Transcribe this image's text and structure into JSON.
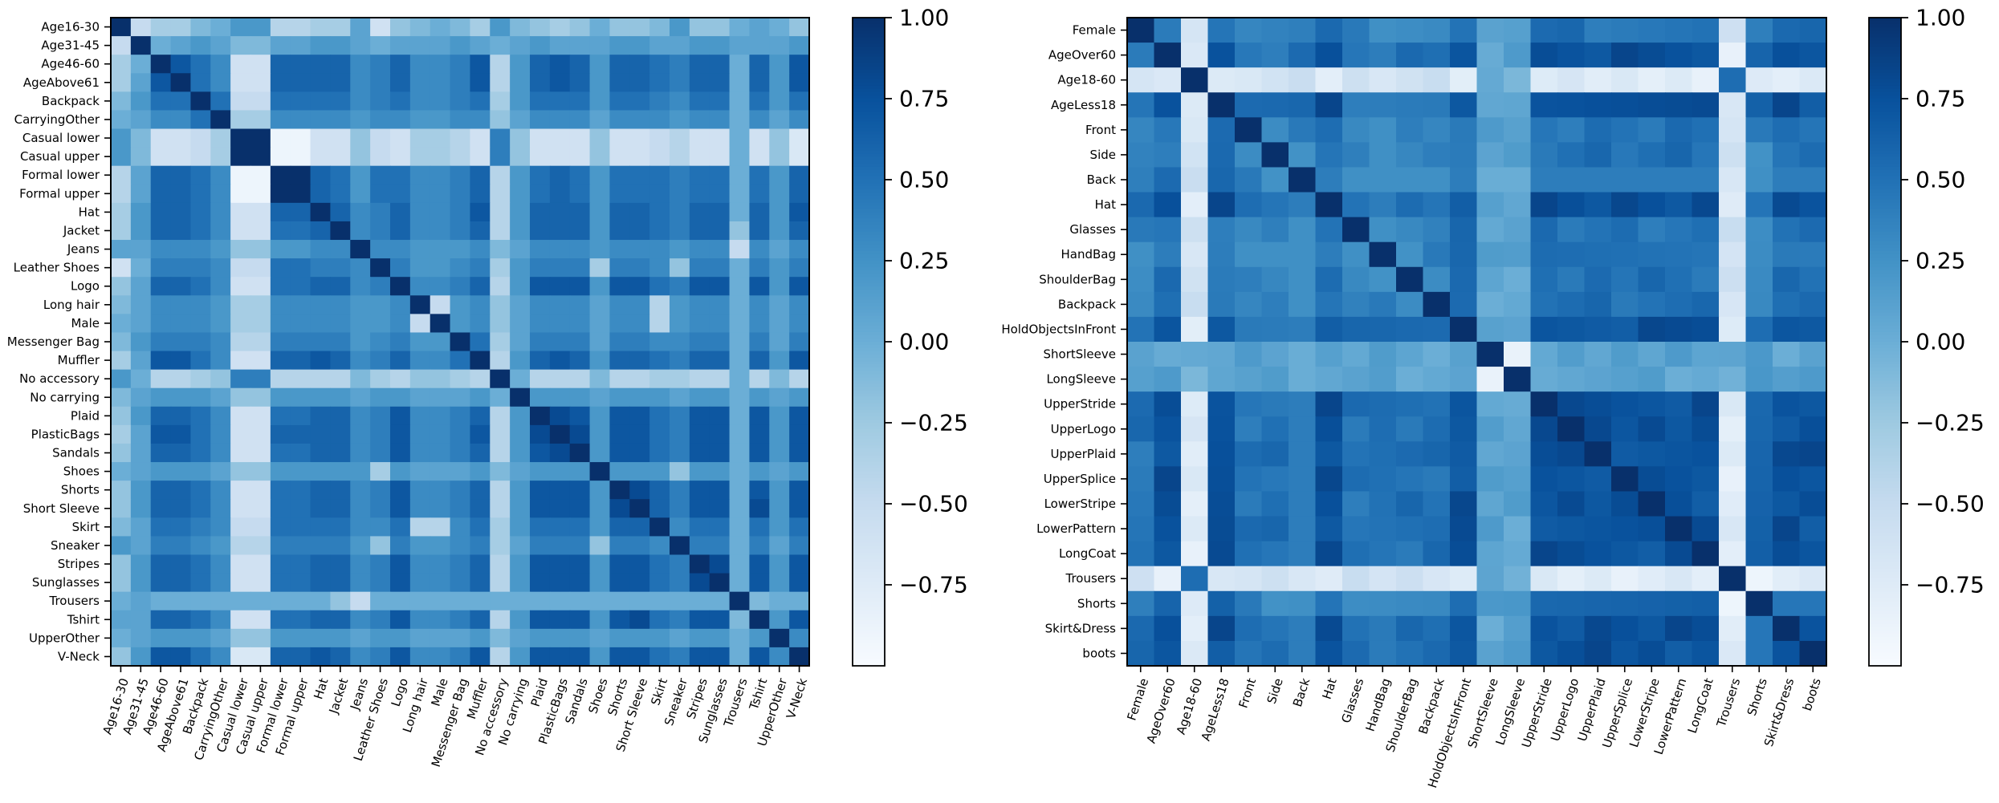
{
  "colors": {
    "cmap_stops": [
      "#f7fbff",
      "#deebf7",
      "#c6dbef",
      "#9ecae1",
      "#6baed6",
      "#4292c6",
      "#2171b5",
      "#08519c",
      "#08306b"
    ],
    "frame": "#000000",
    "text": "#000000"
  },
  "chart_data": [
    {
      "type": "heatmap",
      "title": "",
      "labels": [
        "Age16-30",
        "Age31-45",
        "Age46-60",
        "AgeAbove61",
        "Backpack",
        "CarryingOther",
        "Casual lower",
        "Casual upper",
        "Formal lower",
        "Formal upper",
        "Hat",
        "Jacket",
        "Jeans",
        "Leather Shoes",
        "Logo",
        "Long hair",
        "Male",
        "Messenger Bag",
        "Muffler",
        "No accessory",
        "No carrying",
        "Plaid",
        "PlasticBags",
        "Sandals",
        "Shoes",
        "Shorts",
        "Short Sleeve",
        "Skirt",
        "Sneaker",
        "Stripes",
        "Sunglasses",
        "Trousers",
        "Tshirt",
        "UpperOther",
        "V-Neck"
      ],
      "vmin": -1.0,
      "vmax": 1.0,
      "colorbar_ticks": [
        1.0,
        0.75,
        0.5,
        0.25,
        0.0,
        -0.25,
        -0.5,
        -0.75
      ],
      "colorbar_tick_labels": [
        "1.00",
        "0.75",
        "0.50",
        "0.25",
        "0.00",
        "−0.25",
        "−0.50",
        "−0.75"
      ],
      "approx_groups": {
        "positive": [
          2,
          3,
          4,
          5,
          8,
          9,
          10,
          11,
          14,
          17,
          18,
          21,
          22,
          23,
          25,
          26,
          27,
          29,
          30,
          32,
          34
        ],
        "neutral": [
          0,
          1,
          12,
          13,
          15,
          16,
          20,
          24,
          28,
          31,
          33
        ],
        "negative": [
          6,
          7,
          19
        ]
      },
      "values": [
        [
          1.0,
          -0.5,
          -0.3,
          -0.3,
          -0.1,
          0.0,
          0.2,
          0.2,
          -0.4,
          -0.4,
          -0.3,
          -0.3,
          0.1,
          -0.6,
          -0.2,
          -0.1,
          0.0,
          -0.1,
          -0.3,
          0.2,
          -0.1,
          -0.2,
          -0.3,
          -0.2,
          0.0,
          -0.2,
          -0.2,
          -0.1,
          0.2,
          -0.2,
          -0.2,
          0.0,
          0.1,
          0.0,
          -0.2
        ],
        [
          -0.5,
          1.0,
          0.0,
          0.1,
          0.2,
          0.1,
          -0.1,
          -0.1,
          0.1,
          0.1,
          0.2,
          0.2,
          0.1,
          0.0,
          0.1,
          0.1,
          0.1,
          0.2,
          0.1,
          0.0,
          0.1,
          0.2,
          0.1,
          0.1,
          0.1,
          0.2,
          0.2,
          0.1,
          0.1,
          0.2,
          0.2,
          0.1,
          0.1,
          0.1,
          0.2
        ]
      ],
      "note": "Full 35x35 matrix listed below in rows_full"
    },
    {
      "type": "heatmap",
      "title": "",
      "labels": [
        "Female",
        "AgeOver60",
        "Age18-60",
        "AgeLess18",
        "Front",
        "Side",
        "Back",
        "Hat",
        "Glasses",
        "HandBag",
        "ShoulderBag",
        "Backpack",
        "HoldObjectsInFront",
        "ShortSleeve",
        "LongSleeve",
        "UpperStride",
        "UpperLogo",
        "UpperPlaid",
        "UpperSplice",
        "LowerStripe",
        "LowerPattern",
        "LongCoat",
        "Trousers",
        "Shorts",
        "Skirt&Dress",
        "boots"
      ],
      "vmin": -1.0,
      "vmax": 1.0,
      "colorbar_ticks": [
        1.0,
        0.75,
        0.5,
        0.25,
        0.0,
        -0.25,
        -0.5,
        -0.75
      ],
      "colorbar_tick_labels": [
        "1.00",
        "0.75",
        "0.50",
        "0.25",
        "0.00",
        "−0.25",
        "−0.50",
        "−0.75"
      ]
    }
  ],
  "rows_full_left": [
    [
      1.0,
      -0.5,
      -0.3,
      -0.3,
      -0.1,
      0.0,
      0.2,
      0.2,
      -0.4,
      -0.4,
      -0.3,
      -0.3,
      0.1,
      -0.6,
      -0.2,
      -0.1,
      0.0,
      -0.1,
      -0.3,
      0.2,
      -0.1,
      -0.2,
      -0.3,
      -0.2,
      0.0,
      -0.2,
      -0.2,
      -0.1,
      0.2,
      -0.2,
      -0.2,
      0.0,
      0.1,
      0.0,
      -0.2
    ],
    [
      -0.5,
      1.0,
      0.0,
      0.1,
      0.2,
      0.1,
      -0.1,
      -0.1,
      0.1,
      0.1,
      0.2,
      0.2,
      0.1,
      0.0,
      0.1,
      0.1,
      0.1,
      0.2,
      0.1,
      0.0,
      0.1,
      0.2,
      0.1,
      0.1,
      0.1,
      0.2,
      0.2,
      0.1,
      0.1,
      0.2,
      0.2,
      0.1,
      0.1,
      0.1,
      0.2
    ],
    [
      -0.3,
      0.0,
      1.0,
      0.7,
      0.5,
      0.3,
      -0.6,
      -0.6,
      0.6,
      0.6,
      0.6,
      0.6,
      0.3,
      0.4,
      0.6,
      0.3,
      0.3,
      0.4,
      0.7,
      -0.4,
      0.2,
      0.6,
      0.7,
      0.6,
      0.2,
      0.6,
      0.6,
      0.5,
      0.4,
      0.6,
      0.6,
      0.0,
      0.6,
      0.2,
      0.7
    ],
    [
      -0.3,
      0.1,
      0.7,
      1.0,
      0.5,
      0.3,
      -0.6,
      -0.6,
      0.6,
      0.6,
      0.6,
      0.6,
      0.3,
      0.4,
      0.6,
      0.3,
      0.3,
      0.4,
      0.7,
      -0.4,
      0.2,
      0.6,
      0.7,
      0.6,
      0.2,
      0.6,
      0.6,
      0.5,
      0.4,
      0.6,
      0.6,
      0.0,
      0.6,
      0.2,
      0.7
    ],
    [
      -0.1,
      0.2,
      0.5,
      0.5,
      1.0,
      0.5,
      -0.5,
      -0.5,
      0.5,
      0.5,
      0.5,
      0.5,
      0.3,
      0.4,
      0.5,
      0.3,
      0.3,
      0.4,
      0.5,
      -0.3,
      0.2,
      0.5,
      0.5,
      0.5,
      0.2,
      0.5,
      0.5,
      0.4,
      0.3,
      0.5,
      0.5,
      0.0,
      0.5,
      0.2,
      0.5
    ],
    [
      0.0,
      0.1,
      0.3,
      0.3,
      0.5,
      1.0,
      -0.3,
      -0.3,
      0.3,
      0.3,
      0.3,
      0.3,
      0.2,
      0.3,
      0.3,
      0.2,
      0.2,
      0.3,
      0.3,
      -0.2,
      0.1,
      0.3,
      0.3,
      0.3,
      0.1,
      0.3,
      0.3,
      0.3,
      0.2,
      0.3,
      0.3,
      0.0,
      0.3,
      0.1,
      0.3
    ],
    [
      0.2,
      -0.1,
      -0.6,
      -0.6,
      -0.5,
      -0.3,
      1.0,
      1.0,
      -0.9,
      -0.9,
      -0.6,
      -0.6,
      -0.2,
      -0.5,
      -0.6,
      -0.3,
      -0.3,
      -0.4,
      -0.6,
      0.4,
      -0.2,
      -0.6,
      -0.6,
      -0.6,
      -0.2,
      -0.6,
      -0.6,
      -0.5,
      -0.4,
      -0.6,
      -0.6,
      0.0,
      -0.6,
      -0.2,
      -0.7
    ],
    [
      0.2,
      -0.1,
      -0.6,
      -0.6,
      -0.5,
      -0.3,
      1.0,
      1.0,
      -0.9,
      -0.9,
      -0.6,
      -0.6,
      -0.2,
      -0.5,
      -0.6,
      -0.3,
      -0.3,
      -0.4,
      -0.6,
      0.4,
      -0.2,
      -0.6,
      -0.6,
      -0.6,
      -0.2,
      -0.6,
      -0.6,
      -0.5,
      -0.4,
      -0.6,
      -0.6,
      0.0,
      -0.6,
      -0.2,
      -0.7
    ],
    [
      -0.4,
      0.1,
      0.6,
      0.6,
      0.5,
      0.3,
      -0.9,
      -0.9,
      1.0,
      1.0,
      0.6,
      0.5,
      0.2,
      0.5,
      0.5,
      0.3,
      0.3,
      0.4,
      0.6,
      -0.4,
      0.2,
      0.5,
      0.6,
      0.5,
      0.2,
      0.5,
      0.5,
      0.5,
      0.4,
      0.5,
      0.5,
      0.0,
      0.5,
      0.2,
      0.6
    ],
    [
      -0.4,
      0.1,
      0.6,
      0.6,
      0.5,
      0.3,
      -0.9,
      -0.9,
      1.0,
      1.0,
      0.6,
      0.5,
      0.2,
      0.5,
      0.5,
      0.3,
      0.3,
      0.4,
      0.6,
      -0.4,
      0.2,
      0.5,
      0.6,
      0.5,
      0.2,
      0.5,
      0.5,
      0.5,
      0.4,
      0.5,
      0.5,
      0.0,
      0.5,
      0.2,
      0.6
    ],
    [
      -0.3,
      0.2,
      0.6,
      0.6,
      0.5,
      0.3,
      -0.6,
      -0.6,
      0.6,
      0.6,
      1.0,
      0.6,
      0.3,
      0.4,
      0.6,
      0.3,
      0.3,
      0.4,
      0.7,
      -0.4,
      0.2,
      0.6,
      0.6,
      0.6,
      0.2,
      0.6,
      0.6,
      0.5,
      0.4,
      0.6,
      0.6,
      0.0,
      0.6,
      0.2,
      0.7
    ],
    [
      -0.3,
      0.2,
      0.6,
      0.6,
      0.5,
      0.3,
      -0.6,
      -0.6,
      0.5,
      0.5,
      0.6,
      1.0,
      0.3,
      0.4,
      0.6,
      0.3,
      0.3,
      0.4,
      0.6,
      -0.4,
      0.2,
      0.6,
      0.6,
      0.6,
      0.2,
      0.6,
      0.6,
      0.5,
      0.4,
      0.6,
      0.6,
      -0.2,
      0.6,
      0.2,
      0.6
    ],
    [
      0.1,
      0.1,
      0.3,
      0.3,
      0.3,
      0.2,
      -0.2,
      -0.2,
      0.2,
      0.2,
      0.3,
      0.3,
      1.0,
      0.3,
      0.3,
      0.2,
      0.2,
      0.2,
      0.3,
      -0.1,
      0.1,
      0.3,
      0.3,
      0.3,
      0.2,
      0.3,
      0.3,
      0.3,
      0.2,
      0.3,
      0.3,
      -0.5,
      0.3,
      0.1,
      0.3
    ],
    [
      -0.6,
      0.0,
      0.4,
      0.4,
      0.4,
      0.3,
      -0.5,
      -0.5,
      0.5,
      0.5,
      0.4,
      0.4,
      0.3,
      1.0,
      0.4,
      0.2,
      0.2,
      0.3,
      0.4,
      -0.3,
      0.2,
      0.4,
      0.4,
      0.4,
      -0.3,
      0.4,
      0.4,
      0.3,
      -0.2,
      0.4,
      0.4,
      0.0,
      0.4,
      0.2,
      0.4
    ],
    [
      -0.2,
      0.1,
      0.6,
      0.6,
      0.5,
      0.3,
      -0.6,
      -0.6,
      0.5,
      0.5,
      0.6,
      0.6,
      0.3,
      0.4,
      1.0,
      0.3,
      0.3,
      0.4,
      0.6,
      -0.4,
      0.2,
      0.7,
      0.7,
      0.7,
      0.2,
      0.7,
      0.7,
      0.5,
      0.4,
      0.7,
      0.7,
      0.0,
      0.7,
      0.2,
      0.7
    ],
    [
      -0.1,
      0.1,
      0.3,
      0.3,
      0.3,
      0.2,
      -0.3,
      -0.3,
      0.3,
      0.3,
      0.3,
      0.3,
      0.2,
      0.2,
      0.3,
      1.0,
      -0.5,
      0.2,
      0.3,
      -0.2,
      0.1,
      0.3,
      0.3,
      0.3,
      0.1,
      0.3,
      0.3,
      -0.4,
      0.2,
      0.3,
      0.3,
      0.0,
      0.3,
      0.1,
      0.3
    ],
    [
      0.0,
      0.1,
      0.3,
      0.3,
      0.3,
      0.2,
      -0.3,
      -0.3,
      0.3,
      0.3,
      0.3,
      0.3,
      0.2,
      0.2,
      0.3,
      -0.5,
      1.0,
      0.2,
      0.3,
      -0.2,
      0.1,
      0.3,
      0.3,
      0.3,
      0.1,
      0.3,
      0.3,
      -0.4,
      0.2,
      0.3,
      0.3,
      0.0,
      0.3,
      0.1,
      0.3
    ],
    [
      -0.1,
      0.2,
      0.4,
      0.4,
      0.4,
      0.3,
      -0.4,
      -0.4,
      0.4,
      0.4,
      0.4,
      0.4,
      0.2,
      0.3,
      0.4,
      0.2,
      0.2,
      1.0,
      0.5,
      -0.3,
      0.1,
      0.4,
      0.4,
      0.4,
      0.1,
      0.4,
      0.4,
      0.3,
      0.3,
      0.4,
      0.4,
      0.0,
      0.4,
      0.1,
      0.4
    ],
    [
      -0.3,
      0.1,
      0.7,
      0.7,
      0.5,
      0.3,
      -0.6,
      -0.6,
      0.6,
      0.6,
      0.7,
      0.6,
      0.3,
      0.4,
      0.6,
      0.3,
      0.3,
      0.5,
      1.0,
      -0.4,
      0.2,
      0.6,
      0.7,
      0.6,
      0.2,
      0.6,
      0.6,
      0.5,
      0.4,
      0.6,
      0.6,
      0.0,
      0.6,
      0.2,
      0.7
    ],
    [
      0.2,
      0.0,
      -0.4,
      -0.4,
      -0.3,
      -0.2,
      0.4,
      0.4,
      -0.4,
      -0.4,
      -0.4,
      -0.4,
      -0.1,
      -0.3,
      -0.4,
      -0.2,
      -0.2,
      -0.3,
      -0.4,
      1.0,
      0.0,
      -0.4,
      -0.4,
      -0.4,
      -0.1,
      -0.4,
      -0.4,
      -0.3,
      -0.3,
      -0.4,
      -0.4,
      0.0,
      -0.4,
      -0.1,
      -0.4
    ],
    [
      -0.1,
      0.1,
      0.2,
      0.2,
      0.2,
      0.1,
      -0.2,
      -0.2,
      0.2,
      0.2,
      0.2,
      0.2,
      0.1,
      0.2,
      0.2,
      0.1,
      0.1,
      0.1,
      0.2,
      0.0,
      1.0,
      0.2,
      0.2,
      0.2,
      0.1,
      0.2,
      0.2,
      0.2,
      0.1,
      0.2,
      0.2,
      0.0,
      0.2,
      0.1,
      0.2
    ],
    [
      -0.2,
      0.2,
      0.6,
      0.6,
      0.5,
      0.3,
      -0.6,
      -0.6,
      0.5,
      0.5,
      0.6,
      0.6,
      0.3,
      0.4,
      0.7,
      0.3,
      0.3,
      0.4,
      0.6,
      -0.4,
      0.2,
      1.0,
      0.8,
      0.7,
      0.2,
      0.7,
      0.7,
      0.5,
      0.4,
      0.7,
      0.7,
      0.0,
      0.7,
      0.2,
      0.7
    ],
    [
      -0.3,
      0.1,
      0.7,
      0.7,
      0.5,
      0.3,
      -0.6,
      -0.6,
      0.6,
      0.6,
      0.6,
      0.6,
      0.3,
      0.4,
      0.7,
      0.3,
      0.3,
      0.4,
      0.7,
      -0.4,
      0.2,
      0.8,
      1.0,
      0.8,
      0.2,
      0.7,
      0.7,
      0.5,
      0.4,
      0.7,
      0.7,
      0.0,
      0.7,
      0.2,
      0.7
    ],
    [
      -0.2,
      0.1,
      0.6,
      0.6,
      0.5,
      0.3,
      -0.6,
      -0.6,
      0.5,
      0.5,
      0.6,
      0.6,
      0.3,
      0.4,
      0.7,
      0.3,
      0.3,
      0.4,
      0.6,
      -0.4,
      0.2,
      0.7,
      0.8,
      1.0,
      0.2,
      0.7,
      0.7,
      0.5,
      0.4,
      0.7,
      0.7,
      0.0,
      0.7,
      0.2,
      0.7
    ],
    [
      0.0,
      0.1,
      0.2,
      0.2,
      0.2,
      0.1,
      -0.2,
      -0.2,
      0.2,
      0.2,
      0.2,
      0.2,
      0.2,
      -0.3,
      0.2,
      0.1,
      0.1,
      0.1,
      0.2,
      -0.1,
      0.1,
      0.2,
      0.2,
      0.2,
      1.0,
      0.2,
      0.2,
      0.2,
      -0.2,
      0.2,
      0.2,
      0.0,
      0.2,
      0.1,
      0.2
    ],
    [
      -0.2,
      0.2,
      0.6,
      0.6,
      0.5,
      0.3,
      -0.6,
      -0.6,
      0.5,
      0.5,
      0.6,
      0.6,
      0.3,
      0.4,
      0.7,
      0.3,
      0.3,
      0.4,
      0.6,
      -0.4,
      0.2,
      0.7,
      0.7,
      0.7,
      0.2,
      1.0,
      0.8,
      0.6,
      0.4,
      0.7,
      0.7,
      0.0,
      0.7,
      0.2,
      0.7
    ],
    [
      -0.2,
      0.2,
      0.6,
      0.6,
      0.5,
      0.3,
      -0.6,
      -0.6,
      0.5,
      0.5,
      0.6,
      0.6,
      0.3,
      0.4,
      0.7,
      0.3,
      0.3,
      0.4,
      0.6,
      -0.4,
      0.2,
      0.7,
      0.7,
      0.7,
      0.2,
      0.8,
      1.0,
      0.6,
      0.4,
      0.7,
      0.7,
      0.0,
      0.8,
      0.2,
      0.7
    ],
    [
      -0.1,
      0.1,
      0.5,
      0.5,
      0.4,
      0.3,
      -0.5,
      -0.5,
      0.5,
      0.5,
      0.5,
      0.5,
      0.3,
      0.3,
      0.5,
      -0.4,
      -0.4,
      0.3,
      0.5,
      -0.3,
      0.2,
      0.5,
      0.5,
      0.5,
      0.2,
      0.6,
      0.6,
      1.0,
      0.3,
      0.5,
      0.5,
      0.0,
      0.5,
      0.2,
      0.5
    ],
    [
      0.2,
      0.1,
      0.4,
      0.4,
      0.3,
      0.2,
      -0.4,
      -0.4,
      0.4,
      0.4,
      0.4,
      0.4,
      0.2,
      -0.2,
      0.4,
      0.2,
      0.2,
      0.3,
      0.4,
      -0.3,
      0.1,
      0.4,
      0.4,
      0.4,
      -0.2,
      0.4,
      0.4,
      0.3,
      1.0,
      0.4,
      0.4,
      0.0,
      0.4,
      0.1,
      0.4
    ],
    [
      -0.2,
      0.2,
      0.6,
      0.6,
      0.5,
      0.3,
      -0.6,
      -0.6,
      0.5,
      0.5,
      0.6,
      0.6,
      0.3,
      0.4,
      0.7,
      0.3,
      0.3,
      0.4,
      0.6,
      -0.4,
      0.2,
      0.7,
      0.7,
      0.7,
      0.2,
      0.7,
      0.7,
      0.5,
      0.4,
      1.0,
      0.8,
      0.0,
      0.7,
      0.2,
      0.7
    ],
    [
      -0.2,
      0.2,
      0.6,
      0.6,
      0.5,
      0.3,
      -0.6,
      -0.6,
      0.5,
      0.5,
      0.6,
      0.6,
      0.3,
      0.4,
      0.7,
      0.3,
      0.3,
      0.4,
      0.6,
      -0.4,
      0.2,
      0.7,
      0.7,
      0.7,
      0.2,
      0.7,
      0.7,
      0.5,
      0.4,
      0.8,
      1.0,
      0.0,
      0.7,
      0.2,
      0.7
    ],
    [
      0.0,
      0.1,
      0.0,
      0.0,
      0.0,
      0.0,
      0.0,
      0.0,
      0.0,
      0.0,
      0.0,
      -0.2,
      -0.5,
      0.0,
      0.0,
      0.0,
      0.0,
      0.0,
      0.0,
      0.0,
      0.0,
      0.0,
      0.0,
      0.0,
      0.0,
      0.0,
      0.0,
      0.0,
      0.0,
      0.0,
      0.0,
      1.0,
      -0.1,
      0.0,
      0.0
    ],
    [
      0.1,
      0.1,
      0.6,
      0.6,
      0.5,
      0.3,
      -0.6,
      -0.6,
      0.5,
      0.5,
      0.6,
      0.6,
      0.3,
      0.4,
      0.7,
      0.3,
      0.3,
      0.4,
      0.6,
      -0.4,
      0.2,
      0.7,
      0.7,
      0.7,
      0.2,
      0.7,
      0.8,
      0.5,
      0.4,
      0.7,
      0.7,
      -0.1,
      1.0,
      0.2,
      0.7
    ],
    [
      0.0,
      0.1,
      0.2,
      0.2,
      0.2,
      0.1,
      -0.2,
      -0.2,
      0.2,
      0.2,
      0.2,
      0.2,
      0.1,
      0.2,
      0.2,
      0.1,
      0.1,
      0.1,
      0.2,
      -0.1,
      0.1,
      0.2,
      0.2,
      0.2,
      0.1,
      0.2,
      0.2,
      0.2,
      0.1,
      0.2,
      0.2,
      0.0,
      0.2,
      1.0,
      0.3
    ],
    [
      -0.2,
      0.2,
      0.7,
      0.7,
      0.5,
      0.3,
      -0.7,
      -0.7,
      0.6,
      0.6,
      0.7,
      0.6,
      0.3,
      0.4,
      0.7,
      0.3,
      0.3,
      0.4,
      0.7,
      -0.4,
      0.2,
      0.7,
      0.7,
      0.7,
      0.2,
      0.7,
      0.7,
      0.5,
      0.4,
      0.7,
      0.7,
      0.0,
      0.7,
      0.3,
      1.0
    ]
  ],
  "right_groups": {
    "a_strong": [
      1,
      3,
      7,
      12,
      15,
      16,
      17,
      18,
      19,
      20,
      21,
      24,
      25
    ],
    "b_mid": [
      0,
      4,
      5,
      6,
      8,
      9,
      10,
      11
    ],
    "c_sleeve": [
      13,
      14
    ],
    "d_neg": [
      2,
      22
    ],
    "e_shorts": [
      23
    ]
  }
}
